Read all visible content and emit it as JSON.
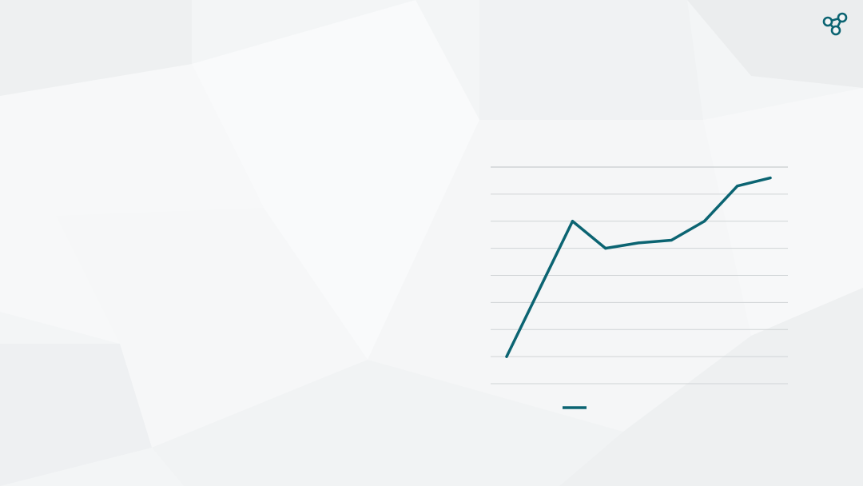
{
  "colors": {
    "background": "#f3f5f6",
    "series": "#0b6472",
    "gridline": "#d0d4d6",
    "logo": "#0b6472"
  },
  "logo": {
    "icon": "share-network-icon"
  },
  "chart_data": {
    "type": "line",
    "title": "",
    "xlabel": "",
    "ylabel": "",
    "x": [
      1,
      2,
      3,
      4,
      5,
      6,
      7,
      8,
      9
    ],
    "ylim": [
      0,
      8
    ],
    "grid": true,
    "legend": "bottom-left",
    "series": [
      {
        "values": [
          1.0,
          3.5,
          6.0,
          5.0,
          5.2,
          5.3,
          6.0,
          7.3,
          7.6
        ]
      }
    ]
  }
}
